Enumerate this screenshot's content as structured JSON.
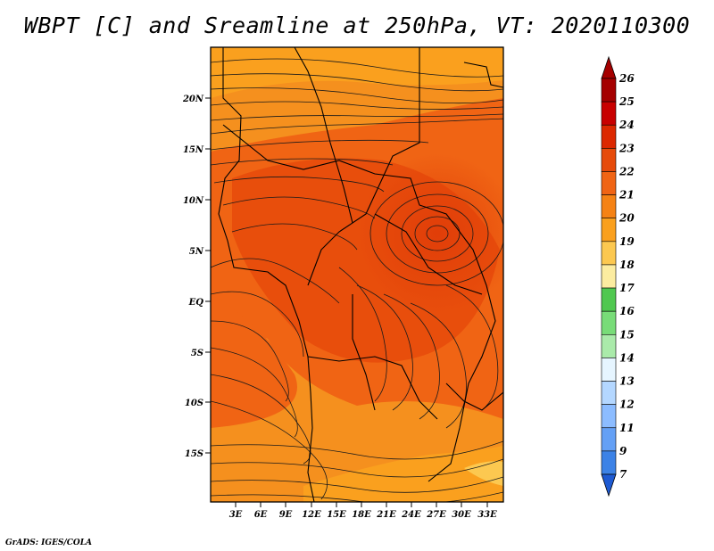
{
  "title": "WBPT [C] and Sreamline at 250hPa, VT: 2020110300",
  "footer": "GrADS: IGES/COLA",
  "map": {
    "lon_labels": [
      "3E",
      "6E",
      "9E",
      "12E",
      "15E",
      "18E",
      "21E",
      "24E",
      "27E",
      "30E",
      "33E"
    ],
    "lat_labels": [
      "20N",
      "15N",
      "10N",
      "5N",
      "EQ",
      "5S",
      "10S",
      "15S"
    ],
    "field_colors": {
      "warmest": "#e64a0a",
      "warm": "#f06414",
      "mid": "#f5901e",
      "cool": "#fab43c",
      "coolest": "#fcd46a"
    }
  },
  "colorbar": {
    "labels": [
      "26",
      "25",
      "24",
      "23",
      "22",
      "21",
      "20",
      "19",
      "18",
      "17",
      "16",
      "15",
      "14",
      "13",
      "12",
      "11",
      "9",
      "7"
    ],
    "colors": [
      "#a50000",
      "#c80000",
      "#dc2800",
      "#e64a0a",
      "#f06414",
      "#f58214",
      "#faa01e",
      "#fcc850",
      "#fceca0",
      "#50c850",
      "#78dc78",
      "#aaeaaa",
      "#e6f5ff",
      "#b4d7ff",
      "#8cbcff",
      "#64a0f5",
      "#3c82e6",
      "#1e5ad2"
    ]
  }
}
